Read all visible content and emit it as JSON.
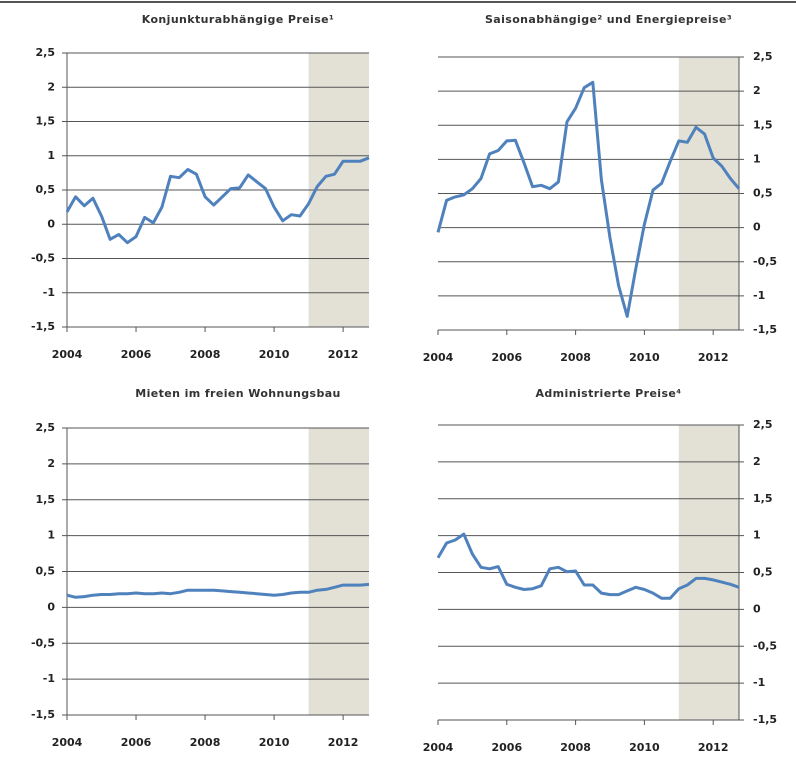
{
  "chart_data": [
    {
      "type": "line",
      "title": "Konjunkturabhängige Preise¹",
      "y_axis_side": "left",
      "color": "#4f81bd",
      "shade": [
        2011,
        2012.75
      ],
      "x": [
        2004,
        2004.25,
        2004.5,
        2004.75,
        2005,
        2005.25,
        2005.5,
        2005.75,
        2006,
        2006.25,
        2006.5,
        2006.75,
        2007,
        2007.25,
        2007.5,
        2007.75,
        2008,
        2008.25,
        2008.5,
        2008.75,
        2009,
        2009.25,
        2009.5,
        2009.75,
        2010,
        2010.25,
        2010.5,
        2010.75,
        2011,
        2011.25,
        2011.5,
        2011.75,
        2012,
        2012.25,
        2012.5,
        2012.75
      ],
      "values": [
        0.18,
        0.4,
        0.27,
        0.38,
        0.12,
        -0.22,
        -0.15,
        -0.27,
        -0.18,
        0.1,
        0.02,
        0.25,
        0.7,
        0.68,
        0.8,
        0.73,
        0.4,
        0.28,
        0.4,
        0.52,
        0.53,
        0.72,
        0.62,
        0.52,
        0.25,
        0.05,
        0.14,
        0.12,
        0.3,
        0.55,
        0.7,
        0.73,
        0.92,
        0.92,
        0.92,
        0.97
      ],
      "xlim": [
        2004,
        2012.75
      ],
      "xticks": [
        2004,
        2006,
        2008,
        2010,
        2012
      ],
      "ylim": [
        -1.5,
        2.5
      ],
      "yticks": [
        {
          "value": 2.5,
          "label": "2,5"
        },
        2,
        {
          "value": 1.5,
          "label": "1,5"
        },
        1,
        {
          "value": 0.5,
          "label": "0,5"
        },
        0,
        {
          "value": -0.5,
          "label": "-0,5"
        },
        -1,
        {
          "value": -1.5,
          "label": "-1,5"
        }
      ],
      "grid": true
    },
    {
      "type": "line",
      "title": "Saisonabhängige² und Energiepreise³",
      "y_axis_side": "right",
      "color": "#4f81bd",
      "shade": [
        2011,
        2012.75
      ],
      "x": [
        2004,
        2004.25,
        2004.5,
        2004.75,
        2005,
        2005.25,
        2005.5,
        2005.75,
        2006,
        2006.25,
        2006.5,
        2006.75,
        2007,
        2007.25,
        2007.5,
        2007.75,
        2008,
        2008.25,
        2008.5,
        2008.75,
        2009,
        2009.25,
        2009.5,
        2009.75,
        2010,
        2010.25,
        2010.5,
        2010.75,
        2011,
        2011.25,
        2011.5,
        2011.75,
        2012,
        2012.25,
        2012.5,
        2012.75
      ],
      "values": [
        -0.07,
        0.4,
        0.45,
        0.48,
        0.57,
        0.72,
        1.08,
        1.13,
        1.27,
        1.28,
        0.95,
        0.6,
        0.62,
        0.57,
        0.67,
        1.55,
        1.75,
        2.05,
        2.13,
        0.7,
        -0.15,
        -0.85,
        -1.3,
        -0.6,
        0.05,
        0.55,
        0.65,
        0.97,
        1.27,
        1.25,
        1.47,
        1.37,
        1.02,
        0.9,
        0.72,
        0.57
      ],
      "xlim": [
        2004,
        2012.75
      ],
      "xticks": [
        2004,
        2006,
        2008,
        2010,
        2012
      ],
      "ylim": [
        -1.5,
        2.5
      ],
      "yticks": [
        {
          "value": 2.5,
          "label": "2,5"
        },
        2,
        {
          "value": 1.5,
          "label": "1,5"
        },
        1,
        {
          "value": 0.5,
          "label": "0,5"
        },
        0,
        {
          "value": -0.5,
          "label": "-0,5"
        },
        -1,
        {
          "value": -1.5,
          "label": "-1,5"
        }
      ],
      "grid": true
    },
    {
      "type": "line",
      "title": "Mieten im freien Wohnungsbau",
      "y_axis_side": "left",
      "color": "#4f81bd",
      "shade": [
        2011,
        2012.75
      ],
      "x": [
        2004,
        2004.25,
        2004.5,
        2004.75,
        2005,
        2005.25,
        2005.5,
        2005.75,
        2006,
        2006.25,
        2006.5,
        2006.75,
        2007,
        2007.25,
        2007.5,
        2007.75,
        2008,
        2008.25,
        2008.5,
        2008.75,
        2009,
        2009.25,
        2009.5,
        2009.75,
        2010,
        2010.25,
        2010.5,
        2010.75,
        2011,
        2011.25,
        2011.5,
        2011.75,
        2012,
        2012.25,
        2012.5,
        2012.75
      ],
      "values": [
        0.17,
        0.14,
        0.15,
        0.17,
        0.18,
        0.18,
        0.19,
        0.19,
        0.2,
        0.19,
        0.19,
        0.2,
        0.19,
        0.21,
        0.24,
        0.24,
        0.24,
        0.24,
        0.23,
        0.22,
        0.21,
        0.2,
        0.19,
        0.18,
        0.17,
        0.18,
        0.2,
        0.21,
        0.21,
        0.24,
        0.25,
        0.28,
        0.31,
        0.31,
        0.31,
        0.32
      ],
      "xlim": [
        2004,
        2012.75
      ],
      "xticks": [
        2004,
        2006,
        2008,
        2010,
        2012
      ],
      "ylim": [
        -1.5,
        2.5
      ],
      "yticks": [
        {
          "value": 2.5,
          "label": "2,5"
        },
        2,
        {
          "value": 1.5,
          "label": "1,5"
        },
        1,
        {
          "value": 0.5,
          "label": "0,5"
        },
        0,
        {
          "value": -0.5,
          "label": "-0,5"
        },
        -1,
        {
          "value": -1.5,
          "label": "-1,5"
        }
      ],
      "grid": true
    },
    {
      "type": "line",
      "title": "Administrierte Preise⁴",
      "y_axis_side": "right",
      "color": "#4f81bd",
      "shade": [
        2011,
        2012.75
      ],
      "x": [
        2004,
        2004.25,
        2004.5,
        2004.75,
        2005,
        2005.25,
        2005.5,
        2005.75,
        2006,
        2006.25,
        2006.5,
        2006.75,
        2007,
        2007.25,
        2007.5,
        2007.75,
        2008,
        2008.25,
        2008.5,
        2008.75,
        2009,
        2009.25,
        2009.5,
        2009.75,
        2010,
        2010.25,
        2010.5,
        2010.75,
        2011,
        2011.25,
        2011.5,
        2011.75,
        2012,
        2012.25,
        2012.5,
        2012.75
      ],
      "values": [
        0.7,
        0.9,
        0.94,
        1.02,
        0.75,
        0.57,
        0.55,
        0.58,
        0.34,
        0.3,
        0.27,
        0.28,
        0.32,
        0.55,
        0.57,
        0.51,
        0.52,
        0.33,
        0.33,
        0.22,
        0.2,
        0.2,
        0.25,
        0.3,
        0.27,
        0.22,
        0.15,
        0.15,
        0.28,
        0.33,
        0.42,
        0.42,
        0.4,
        0.37,
        0.34,
        0.3
      ],
      "xlim": [
        2004,
        2012.75
      ],
      "xticks": [
        2004,
        2006,
        2008,
        2010,
        2012
      ],
      "ylim": [
        -1.5,
        2.5
      ],
      "yticks": [
        {
          "value": 2.5,
          "label": "2,5"
        },
        2,
        {
          "value": 1.5,
          "label": "1,5"
        },
        1,
        {
          "value": 0.5,
          "label": "0,5"
        },
        0,
        {
          "value": -0.5,
          "label": "-0,5"
        },
        -1,
        {
          "value": -1.5,
          "label": "-1,5"
        }
      ],
      "grid": true
    }
  ]
}
